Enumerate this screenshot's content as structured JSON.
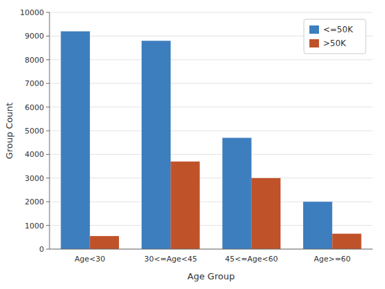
{
  "chart_data": {
    "type": "bar",
    "xlabel": "Age Group",
    "ylabel": "Group Count",
    "categories": [
      "Age<30",
      "30<=Age<45",
      "45<=Age<60",
      "Age>=60"
    ],
    "series": [
      {
        "name": "<=50K",
        "color": "#3d7ebf",
        "values": [
          9200,
          8800,
          4700,
          2000
        ]
      },
      {
        "name": ">50K",
        "color": "#c0522a",
        "values": [
          550,
          3700,
          3000,
          650
        ]
      }
    ],
    "ylim": [
      0,
      10000
    ],
    "yticks": [
      0,
      1000,
      2000,
      3000,
      4000,
      5000,
      6000,
      7000,
      8000,
      9000,
      10000
    ],
    "grid": true,
    "legend": "upper right"
  }
}
